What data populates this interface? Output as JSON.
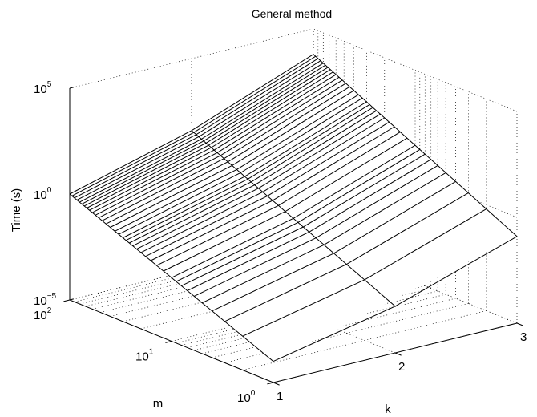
{
  "chart_data": {
    "type": "surface",
    "title": "General method",
    "zlabel": "Time (s)",
    "xlabel": "k",
    "ylabel": "m",
    "x_ticks": [
      "1",
      "2",
      "3"
    ],
    "y_ticks": [
      {
        "base": "10",
        "exp": "0"
      },
      {
        "base": "10",
        "exp": "1"
      },
      {
        "base": "10",
        "exp": "2"
      }
    ],
    "z_ticks": [
      {
        "base": "10",
        "exp": "−5"
      },
      {
        "base": "10",
        "exp": "0"
      },
      {
        "base": "10",
        "exp": "5"
      }
    ],
    "x": [
      1,
      2,
      3
    ],
    "xlim": [
      1,
      3
    ],
    "ylim": [
      1,
      100
    ],
    "zlim": [
      1e-05,
      100000
    ],
    "log_y": true,
    "log_z": true,
    "grid": true,
    "m_values": [
      1,
      2,
      3,
      4,
      5,
      6,
      7,
      8,
      9,
      10,
      12,
      14,
      16,
      18,
      20,
      22,
      24,
      26,
      28,
      30,
      33,
      36,
      40,
      44,
      48,
      52,
      56,
      60,
      64,
      68,
      72,
      76,
      80,
      85,
      90,
      95,
      100
    ],
    "log10_time": {
      "at_k1": [
        -4.0,
        0.0
      ],
      "at_k2": [
        -2.8,
        1.6
      ],
      "at_k3": [
        -0.9,
        3.8
      ]
    }
  }
}
